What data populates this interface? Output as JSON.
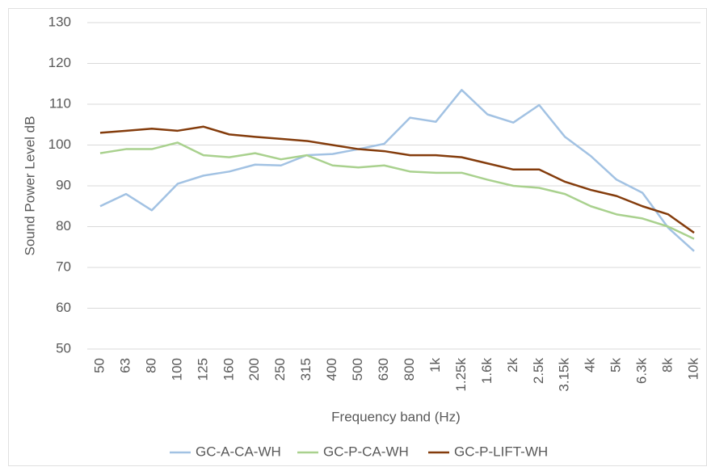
{
  "chart_data": {
    "type": "line",
    "xlabel": "Frequency band (Hz)",
    "ylabel": "Sound Power Level dB",
    "categories": [
      "50",
      "63",
      "80",
      "100",
      "125",
      "160",
      "200",
      "250",
      "315",
      "400",
      "500",
      "630",
      "800",
      "1k",
      "1.25k",
      "1.6k",
      "2k",
      "2.5k",
      "3.15k",
      "4k",
      "5k",
      "6.3k",
      "8k",
      "10k"
    ],
    "series": [
      {
        "name": "GC-A-CA-WH",
        "color": "#a2c2e3",
        "values": [
          85,
          88,
          84,
          90.5,
          92.5,
          93.5,
          95.2,
          95,
          97.5,
          97.8,
          99,
          100.3,
          106.7,
          105.7,
          113.5,
          107.5,
          105.5,
          109.8,
          102,
          97.3,
          91.5,
          88.3,
          79.7,
          74
        ]
      },
      {
        "name": "GC-P-CA-WH",
        "color": "#a9d18e",
        "values": [
          98,
          99,
          99,
          100.6,
          97.5,
          97,
          98,
          96.5,
          97.5,
          95,
          94.5,
          95,
          93.5,
          93.2,
          93.2,
          91.5,
          90,
          89.5,
          88,
          85,
          83,
          82,
          80,
          77
        ]
      },
      {
        "name": "GC-P-LIFT-WH",
        "color": "#843c0c",
        "values": [
          103,
          103.5,
          104,
          103.5,
          104.5,
          102.6,
          102,
          101.5,
          101,
          100,
          99,
          98.5,
          97.5,
          97.5,
          97,
          95.5,
          94,
          94,
          91,
          89,
          87.5,
          85,
          83,
          78.5
        ]
      }
    ],
    "ylim": [
      50,
      130
    ],
    "yticks": [
      50,
      60,
      70,
      80,
      90,
      100,
      110,
      120,
      130
    ],
    "grid": true,
    "legend": "bottom"
  }
}
